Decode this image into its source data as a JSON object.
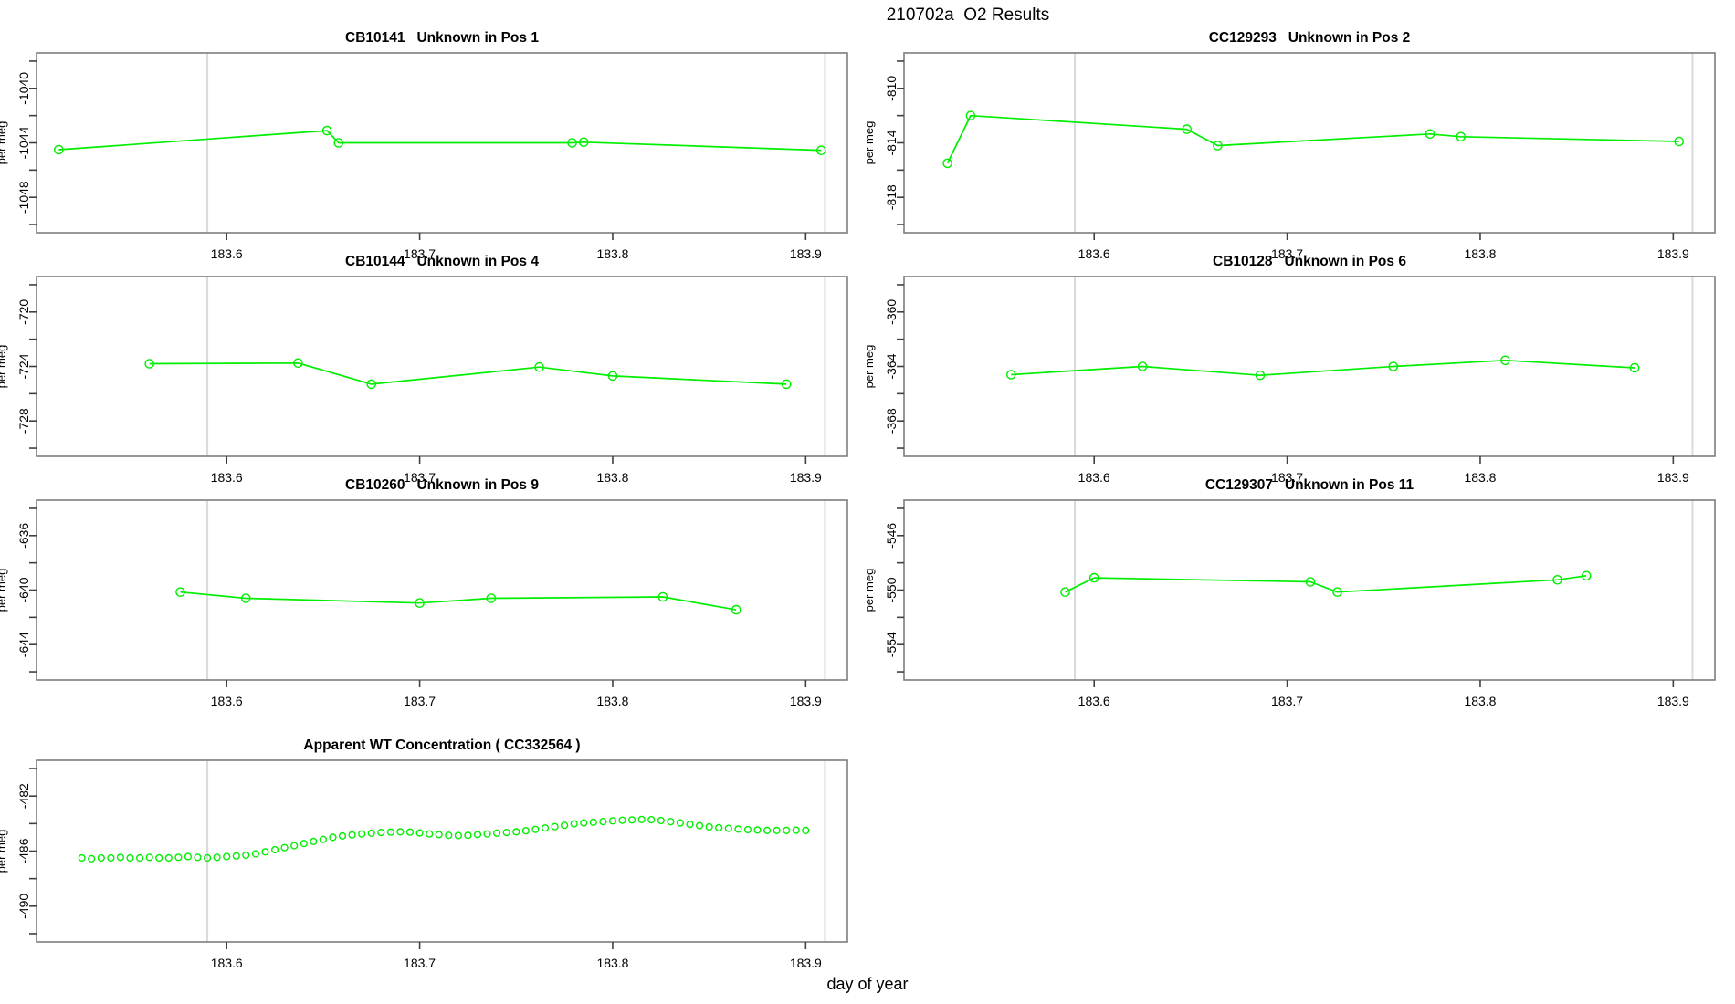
{
  "page": {
    "title": "210702a  O2 Results",
    "xlabel": "day of year"
  },
  "colors": {
    "series": "#00EE00",
    "vline": "#DADADA",
    "box": "#7d7d7d",
    "tick": "#404040",
    "text": "#000000"
  },
  "chart_data": [
    {
      "type": "line",
      "title": "CB10141   Unknown in Pos 1",
      "ylabel": "per meg",
      "xlim": [
        183.5015,
        183.9216
      ],
      "ylim": [
        -1050.6,
        -1037.4
      ],
      "xticks": [
        183.6,
        183.7,
        183.8,
        183.9
      ],
      "xtick_labels": [
        "183.6",
        "183.7",
        "183.8",
        "183.9"
      ],
      "yticks_labeled": [
        -1040,
        -1044,
        -1048
      ],
      "yticks_minor": [
        -1038,
        -1042,
        -1046,
        -1050
      ],
      "vlines": [
        183.59,
        183.91
      ],
      "marker": "open-circle",
      "x": [
        183.513,
        183.652,
        183.658,
        183.779,
        183.785,
        183.908
      ],
      "y": [
        -1044.5,
        -1043.1,
        -1044.0,
        -1044.0,
        -1043.95,
        -1044.55
      ]
    },
    {
      "type": "line",
      "title": "CC129293   Unknown in Pos 2",
      "ylabel": "per meg",
      "xlim": [
        183.5015,
        183.9216
      ],
      "ylim": [
        -820.6,
        -807.4
      ],
      "xticks": [
        183.6,
        183.7,
        183.8,
        183.9
      ],
      "xtick_labels": [
        "183.6",
        "183.7",
        "183.8",
        "183.9"
      ],
      "yticks_labeled": [
        -810,
        -814,
        -818
      ],
      "yticks_minor": [
        -808,
        -812,
        -816,
        -820
      ],
      "vlines": [
        183.59,
        183.91
      ],
      "marker": "open-circle",
      "x": [
        183.524,
        183.536,
        183.648,
        183.664,
        183.774,
        183.79,
        183.903
      ],
      "y": [
        -815.5,
        -812.0,
        -813.0,
        -814.2,
        -813.35,
        -813.55,
        -813.9
      ]
    },
    {
      "type": "line",
      "title": "CB10144   Unknown in Pos 4",
      "ylabel": "per meg",
      "xlim": [
        183.5015,
        183.9216
      ],
      "ylim": [
        -730.6,
        -717.4
      ],
      "xticks": [
        183.6,
        183.7,
        183.8,
        183.9
      ],
      "xtick_labels": [
        "183.6",
        "183.7",
        "183.8",
        "183.9"
      ],
      "yticks_labeled": [
        -720,
        -724,
        -728
      ],
      "yticks_minor": [
        -718,
        -722,
        -726,
        -730
      ],
      "vlines": [
        183.59,
        183.91
      ],
      "marker": "open-circle",
      "x": [
        183.56,
        183.637,
        183.675,
        183.762,
        183.8,
        183.89
      ],
      "y": [
        -723.8,
        -723.75,
        -725.3,
        -724.05,
        -724.7,
        -725.3
      ]
    },
    {
      "type": "line",
      "title": "CB10128   Unknown in Pos 6",
      "ylabel": "per meg",
      "xlim": [
        183.5015,
        183.9216
      ],
      "ylim": [
        -370.6,
        -357.4
      ],
      "xticks": [
        183.6,
        183.7,
        183.8,
        183.9
      ],
      "xtick_labels": [
        "183.6",
        "183.7",
        "183.8",
        "183.9"
      ],
      "yticks_labeled": [
        -360,
        -364,
        -368
      ],
      "yticks_minor": [
        -358,
        -362,
        -366,
        -370
      ],
      "vlines": [
        183.59,
        183.91
      ],
      "marker": "open-circle",
      "x": [
        183.557,
        183.625,
        183.686,
        183.755,
        183.813,
        183.88
      ],
      "y": [
        -364.6,
        -364.0,
        -364.65,
        -364.0,
        -363.55,
        -364.1
      ]
    },
    {
      "type": "line",
      "title": "CB10260   Unknown in Pos 9",
      "ylabel": "per meg",
      "xlim": [
        183.5015,
        183.9216
      ],
      "ylim": [
        -646.6,
        -633.4
      ],
      "xticks": [
        183.6,
        183.7,
        183.8,
        183.9
      ],
      "xtick_labels": [
        "183.6",
        "183.7",
        "183.8",
        "183.9"
      ],
      "yticks_labeled": [
        -636,
        -640,
        -644
      ],
      "yticks_minor": [
        -634,
        -638,
        -642,
        -646
      ],
      "vlines": [
        183.59,
        183.91
      ],
      "marker": "open-circle",
      "x": [
        183.576,
        183.61,
        183.7,
        183.737,
        183.826,
        183.864
      ],
      "y": [
        -640.15,
        -640.6,
        -640.95,
        -640.6,
        -640.5,
        -641.45
      ]
    },
    {
      "type": "line",
      "title": "CC129307   Unknown in Pos 11",
      "ylabel": "per meg",
      "xlim": [
        183.5015,
        183.9216
      ],
      "ylim": [
        -556.6,
        -543.4
      ],
      "xticks": [
        183.6,
        183.7,
        183.8,
        183.9
      ],
      "xtick_labels": [
        "183.6",
        "183.7",
        "183.8",
        "183.9"
      ],
      "yticks_labeled": [
        -546,
        -550,
        -554
      ],
      "yticks_minor": [
        -544,
        -548,
        -552,
        -556
      ],
      "vlines": [
        183.59,
        183.91
      ],
      "marker": "open-circle",
      "x": [
        183.585,
        183.6,
        183.712,
        183.726,
        183.84,
        183.855
      ],
      "y": [
        -550.15,
        -549.1,
        -549.4,
        -550.15,
        -549.25,
        -548.95
      ]
    },
    {
      "type": "scatter",
      "title": "Apparent WT Concentration ( CC332564 )",
      "ylabel": "per meg",
      "xlim": [
        183.5015,
        183.9216
      ],
      "ylim": [
        -492.6,
        -479.4
      ],
      "xticks": [
        183.6,
        183.7,
        183.8,
        183.9
      ],
      "xtick_labels": [
        "183.6",
        "183.7",
        "183.8",
        "183.9"
      ],
      "yticks_labeled": [
        -482,
        -486,
        -490
      ],
      "yticks_minor": [
        -480,
        -484,
        -488,
        -492
      ],
      "vlines": [
        183.59,
        183.91
      ],
      "marker": "open-circle-small",
      "x": [
        183.525,
        183.53,
        183.535,
        183.54,
        183.545,
        183.55,
        183.555,
        183.56,
        183.565,
        183.57,
        183.575,
        183.58,
        183.585,
        183.59,
        183.595,
        183.6,
        183.605,
        183.61,
        183.615,
        183.62,
        183.625,
        183.63,
        183.635,
        183.64,
        183.645,
        183.65,
        183.655,
        183.66,
        183.665,
        183.67,
        183.675,
        183.68,
        183.685,
        183.69,
        183.695,
        183.7,
        183.705,
        183.71,
        183.715,
        183.72,
        183.725,
        183.73,
        183.735,
        183.74,
        183.745,
        183.75,
        183.755,
        183.76,
        183.765,
        183.77,
        183.775,
        183.78,
        183.785,
        183.79,
        183.795,
        183.8,
        183.805,
        183.81,
        183.815,
        183.82,
        183.825,
        183.83,
        183.835,
        183.84,
        183.845,
        183.85,
        183.855,
        183.86,
        183.865,
        183.87,
        183.875,
        183.88,
        183.885,
        183.89,
        183.895,
        183.9
      ],
      "y": [
        -486.5,
        -486.55,
        -486.5,
        -486.5,
        -486.45,
        -486.5,
        -486.5,
        -486.45,
        -486.5,
        -486.5,
        -486.45,
        -486.4,
        -486.45,
        -486.5,
        -486.45,
        -486.4,
        -486.35,
        -486.3,
        -486.2,
        -486.05,
        -485.9,
        -485.75,
        -485.6,
        -485.45,
        -485.3,
        -485.15,
        -485.0,
        -484.9,
        -484.82,
        -484.75,
        -484.7,
        -484.65,
        -484.62,
        -484.6,
        -484.62,
        -484.68,
        -484.75,
        -484.8,
        -484.85,
        -484.87,
        -484.85,
        -484.8,
        -484.75,
        -484.7,
        -484.65,
        -484.6,
        -484.52,
        -484.42,
        -484.32,
        -484.22,
        -484.12,
        -484.02,
        -483.95,
        -483.9,
        -483.85,
        -483.8,
        -483.76,
        -483.73,
        -483.7,
        -483.72,
        -483.78,
        -483.86,
        -483.95,
        -484.05,
        -484.15,
        -484.24,
        -484.3,
        -484.35,
        -484.4,
        -484.44,
        -484.47,
        -484.5,
        -484.5,
        -484.5,
        -484.48,
        -484.5
      ]
    }
  ]
}
